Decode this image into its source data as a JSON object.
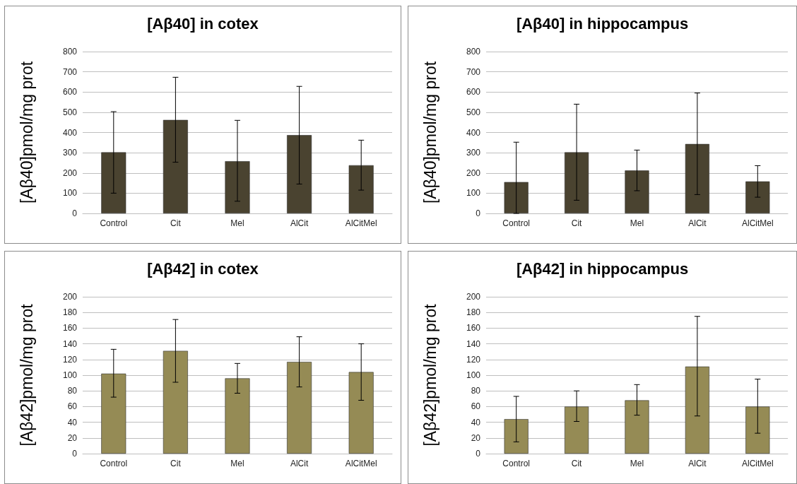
{
  "chart_data": [
    {
      "type": "bar",
      "title": "[Aβ40] in cotex",
      "ylabel": "[Aβ40]pmol/mg prot",
      "categories": [
        "Control",
        "Cit",
        "Mel",
        "AlCit",
        "AlCitMel"
      ],
      "values": [
        302,
        462,
        258,
        387,
        238
      ],
      "color": "#4a4330",
      "errors": [
        [
          100,
          503
        ],
        [
          253,
          673
        ],
        [
          60,
          460
        ],
        [
          145,
          628
        ],
        [
          115,
          362
        ]
      ],
      "ylim": [
        0,
        800
      ],
      "yticks": [
        0,
        100,
        200,
        300,
        400,
        500,
        600,
        700,
        800
      ],
      "grid": "y"
    },
    {
      "type": "bar",
      "title": "[Aβ40] in hippocampus",
      "ylabel": "[Aβ40]pmol/mg prot",
      "categories": [
        "Control",
        "Cit",
        "Mel",
        "AlCit",
        "AlCitMel"
      ],
      "values": [
        155,
        302,
        212,
        343,
        158
      ],
      "color": "#4a4330",
      "errors": [
        [
          0,
          352
        ],
        [
          65,
          540
        ],
        [
          112,
          313
        ],
        [
          93,
          595
        ],
        [
          80,
          236
        ]
      ],
      "ylim": [
        0,
        800
      ],
      "yticks": [
        0,
        100,
        200,
        300,
        400,
        500,
        600,
        700,
        800
      ],
      "grid": "y"
    },
    {
      "type": "bar",
      "title": "[Aβ42] in cotex",
      "ylabel": "[Aβ42]pmol/mg prot",
      "categories": [
        "Control",
        "Cit",
        "Mel",
        "AlCit",
        "AlCitMel"
      ],
      "values": [
        102,
        131,
        96,
        117,
        104
      ],
      "color": "#958b55",
      "errors": [
        [
          72,
          133
        ],
        [
          91,
          171
        ],
        [
          77,
          115
        ],
        [
          85,
          149
        ],
        [
          68,
          140
        ]
      ],
      "ylim": [
        0,
        200
      ],
      "yticks": [
        0,
        20,
        40,
        60,
        80,
        100,
        120,
        140,
        160,
        180,
        200
      ],
      "grid": "y"
    },
    {
      "type": "bar",
      "title": "[Aβ42] in hippocampus",
      "ylabel": "[Aβ42]pmol/mg prot",
      "categories": [
        "Control",
        "Cit",
        "Mel",
        "AlCit",
        "AlCitMel"
      ],
      "values": [
        44,
        60,
        68,
        111,
        60
      ],
      "color": "#958b55",
      "errors": [
        [
          15,
          73
        ],
        [
          41,
          80
        ],
        [
          49,
          88
        ],
        [
          48,
          175
        ],
        [
          26,
          95
        ]
      ],
      "ylim": [
        0,
        200
      ],
      "yticks": [
        0,
        20,
        40,
        60,
        80,
        100,
        120,
        140,
        160,
        180,
        200
      ],
      "grid": "y"
    }
  ]
}
